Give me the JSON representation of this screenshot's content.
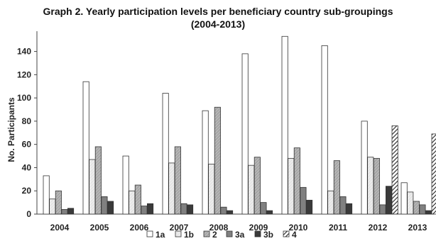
{
  "chart_data": {
    "type": "bar",
    "title_line1": "Graph 2.  Yearly participation levels per beneficiary country sub-groupings",
    "title_line2": "(2004-2013)",
    "ylabel": "No. Participants",
    "xlabel": "",
    "ylim": [
      0,
      155
    ],
    "yticks": [
      0,
      20,
      40,
      60,
      80,
      100,
      120,
      140
    ],
    "grid": false,
    "legend_position": "bottom",
    "categories": [
      "2004",
      "2005",
      "2006",
      "2007",
      "2008",
      "2009",
      "2010",
      "2011",
      "2012",
      "2013"
    ],
    "series": [
      {
        "name": "1a",
        "fill": "#ffffff",
        "pattern": "none",
        "values": [
          33,
          114,
          50,
          104,
          89,
          138,
          153,
          145,
          80,
          27
        ]
      },
      {
        "name": "1b",
        "fill": "#e8e8e8",
        "pattern": "light-hatch",
        "values": [
          13,
          47,
          20,
          44,
          43,
          42,
          48,
          20,
          49,
          19
        ]
      },
      {
        "name": "2",
        "fill": "#b5b5b5",
        "pattern": "hatch",
        "values": [
          20,
          58,
          25,
          58,
          92,
          49,
          57,
          46,
          48,
          11
        ]
      },
      {
        "name": "3a",
        "fill": "#808080",
        "pattern": "none",
        "values": [
          4,
          15,
          7,
          9,
          6,
          10,
          23,
          15,
          8,
          8
        ]
      },
      {
        "name": "3b",
        "fill": "#3a3a3a",
        "pattern": "none",
        "values": [
          5,
          11,
          9,
          8,
          3,
          3,
          12,
          9,
          24,
          3
        ]
      },
      {
        "name": "4",
        "fill": "#ffffff",
        "pattern": "diagonal-stripe",
        "values": [
          0,
          0,
          0,
          0,
          0,
          0,
          0,
          0,
          76,
          69
        ]
      }
    ]
  }
}
